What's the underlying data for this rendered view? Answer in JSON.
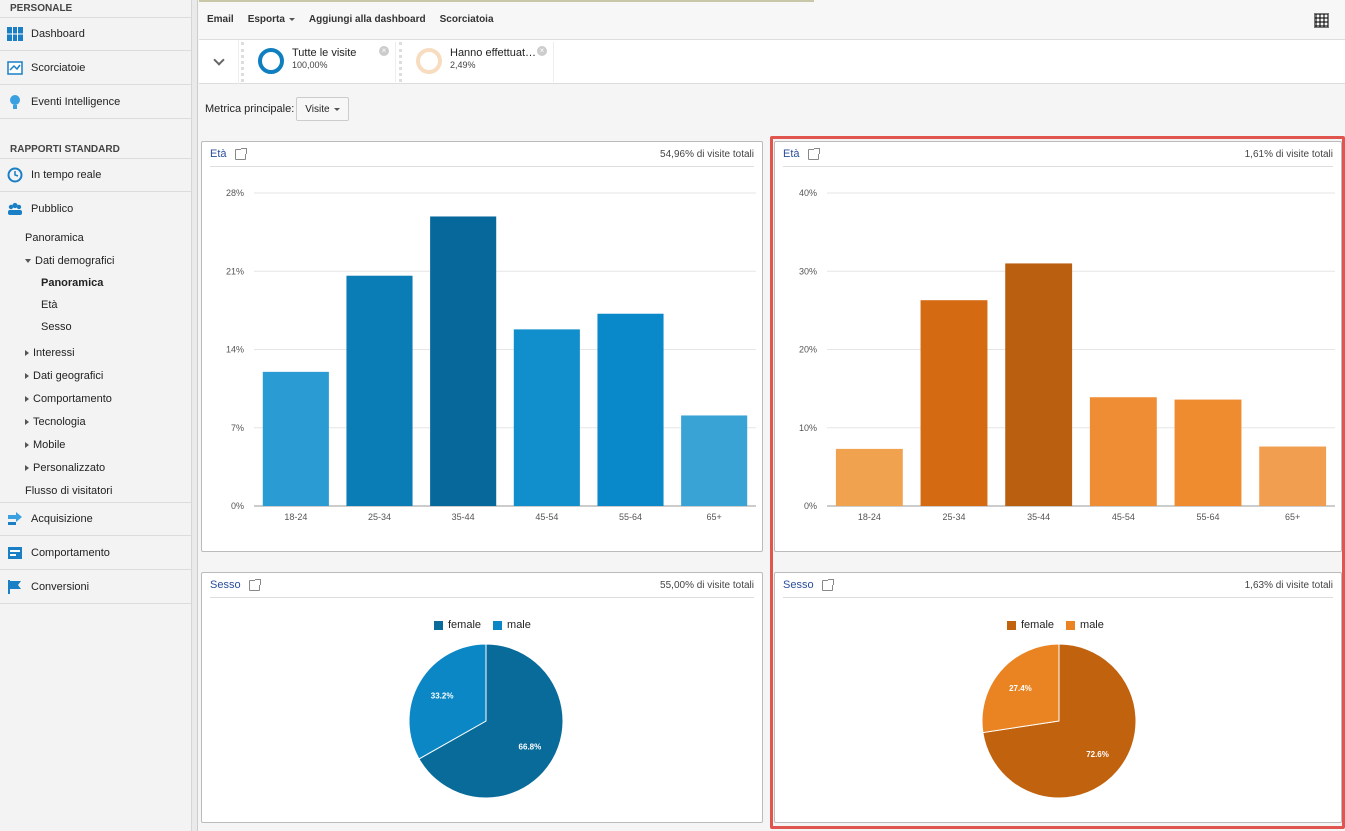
{
  "sidebar": {
    "personal_heading": "PERSONALE",
    "personal_items": [
      {
        "label": "Dashboard",
        "icon": "dashboard-icon"
      },
      {
        "label": "Scorciatoie",
        "icon": "shortcut-icon"
      },
      {
        "label": "Eventi Intelligence",
        "icon": "lightbulb-icon"
      }
    ],
    "standard_heading": "RAPPORTI STANDARD",
    "realtime": "In tempo reale",
    "audience": "Pubblico",
    "audience_sub": {
      "overview": "Panoramica",
      "demographics": "Dati demografici",
      "demo_overview": "Panoramica",
      "demo_age": "Età",
      "demo_gender": "Sesso",
      "interests": "Interessi",
      "geo": "Dati geografici",
      "behavior": "Comportamento",
      "technology": "Tecnologia",
      "mobile": "Mobile",
      "custom": "Personalizzato",
      "flow": "Flusso di visitatori"
    },
    "acquisition": "Acquisizione",
    "behavior": "Comportamento",
    "conversions": "Conversioni"
  },
  "toolbar": {
    "email": "Email",
    "export": "Esporta",
    "add_dashboard": "Aggiungi alla dashboard",
    "shortcut": "Scorciatoia"
  },
  "segments": [
    {
      "name": "Tutte le visite",
      "pct": "100,00%"
    },
    {
      "name": "Hanno effettuat…",
      "pct": "2,49%"
    }
  ],
  "metric": {
    "label": "Metrica principale:",
    "value": "Visite"
  },
  "colors": {
    "blue_light": "#2a9ad4",
    "blue": "#0a7ab5",
    "blue_dark": "#07679a",
    "orange_light": "#f0a050",
    "orange": "#d46a12",
    "orange_dark": "#b85f0f",
    "pie_blue_female": "#086b9a",
    "pie_blue_male": "#0b87c6",
    "pie_orange_female": "#c0620e",
    "pie_orange_male": "#ea8423",
    "highlight": "#e0564f"
  },
  "cards": {
    "age_left": {
      "title": "Età",
      "share": "54,96% di visite totali"
    },
    "age_right": {
      "title": "Età",
      "share": "1,61% di visite totali"
    },
    "sex_left": {
      "title": "Sesso",
      "share": "55,00% di visite totali"
    },
    "sex_right": {
      "title": "Sesso",
      "share": "1,63% di visite totali"
    }
  },
  "chart_data": [
    {
      "type": "bar",
      "title": "Età",
      "categories": [
        "18-24",
        "25-34",
        "35-44",
        "45-54",
        "55-64",
        "65+"
      ],
      "values": [
        12.0,
        20.6,
        25.9,
        15.8,
        17.2,
        8.1
      ],
      "yticks": [
        "0%",
        "7%",
        "14%",
        "21%",
        "28%"
      ],
      "ylim": [
        0,
        28
      ],
      "grid": true
    },
    {
      "type": "bar",
      "title": "Età",
      "categories": [
        "18-24",
        "25-34",
        "35-44",
        "45-54",
        "55-64",
        "65+"
      ],
      "values": [
        7.3,
        26.3,
        31.0,
        13.9,
        13.6,
        7.6
      ],
      "yticks": [
        "0%",
        "10%",
        "20%",
        "30%",
        "40%"
      ],
      "ylim": [
        0,
        40
      ],
      "grid": true
    },
    {
      "type": "pie",
      "title": "Sesso",
      "legend": [
        "female",
        "male"
      ],
      "values": [
        66.8,
        33.2
      ],
      "labels": [
        "66.8%",
        "33.2%"
      ]
    },
    {
      "type": "pie",
      "title": "Sesso",
      "legend": [
        "female",
        "male"
      ],
      "values": [
        72.6,
        27.4
      ],
      "labels": [
        "72.6%",
        "27.4%"
      ]
    }
  ]
}
